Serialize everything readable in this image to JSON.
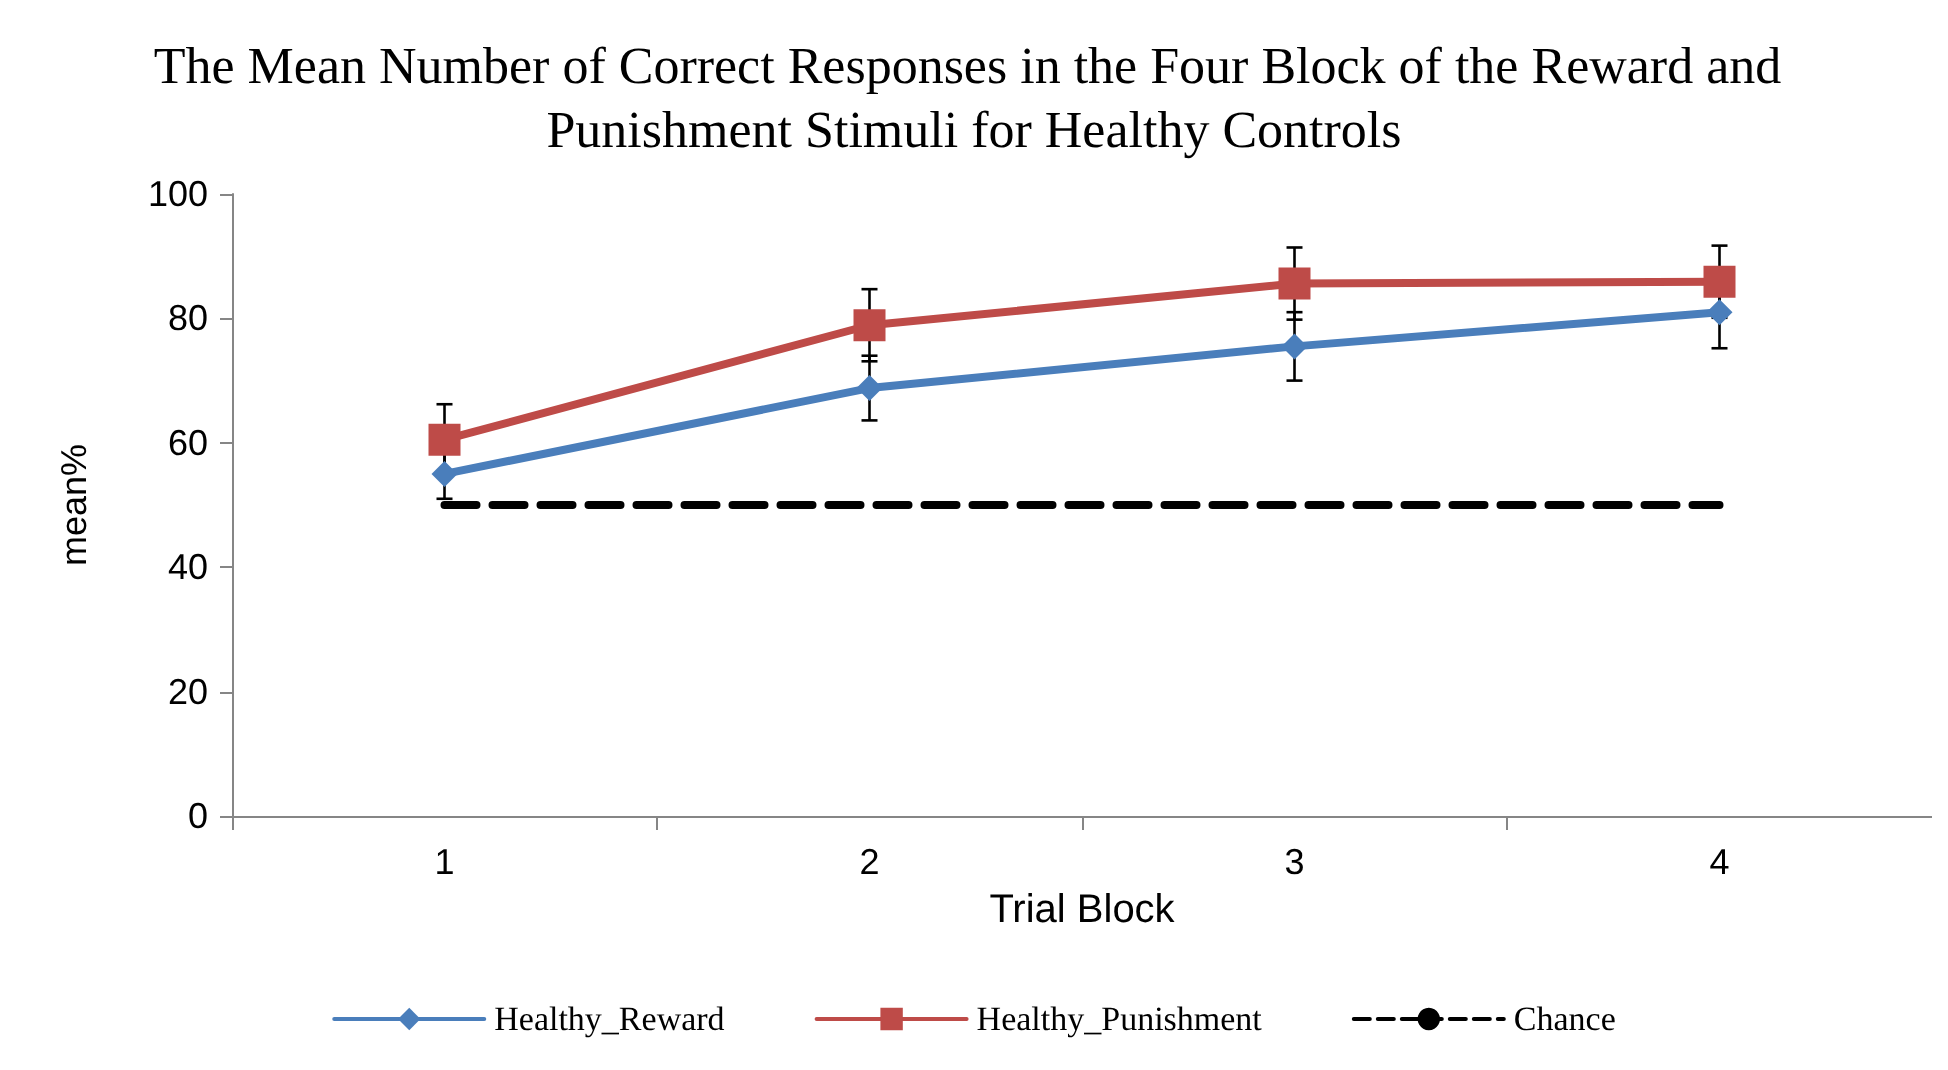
{
  "chart_data": {
    "type": "line",
    "title": "The Mean Number of Correct Responses in the Four Block of the Reward and Punishment Stimuli for Healthy Controls",
    "xlabel": "Trial Block",
    "ylabel": "mean%",
    "categories": [
      "1",
      "2",
      "3",
      "4"
    ],
    "ylim": [
      0,
      100
    ],
    "yticks": [
      0,
      20,
      40,
      60,
      80,
      100
    ],
    "grid": false,
    "legend": "bottom",
    "series": [
      {
        "name": "Healthy_Reward",
        "color": "#4a7ebb",
        "values": [
          55,
          68.8,
          75.5,
          81
        ],
        "errors": [
          4,
          5.2,
          5.5,
          5.8
        ],
        "marker": "diamond",
        "line_style": "solid"
      },
      {
        "name": "Healthy_Punishment",
        "color": "#be4b48",
        "values": [
          60.5,
          78.9,
          85.6,
          85.9
        ],
        "errors": [
          5.7,
          5.8,
          5.8,
          5.8
        ],
        "marker": "square",
        "line_style": "solid"
      },
      {
        "name": "Chance",
        "color": "#000000",
        "values": [
          50,
          50,
          50,
          50
        ],
        "marker": "none",
        "line_style": "dashed"
      }
    ]
  }
}
